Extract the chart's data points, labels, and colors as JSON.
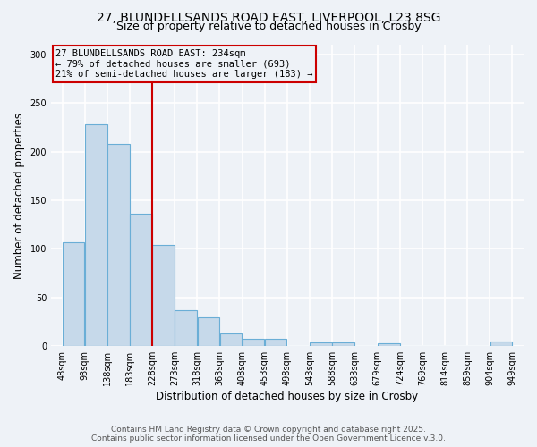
{
  "title1": "27, BLUNDELLSANDS ROAD EAST, LIVERPOOL, L23 8SG",
  "title2": "Size of property relative to detached houses in Crosby",
  "xlabel": "Distribution of detached houses by size in Crosby",
  "ylabel": "Number of detached properties",
  "bin_edges": [
    48,
    93,
    138,
    183,
    228,
    273,
    318,
    363,
    408,
    453,
    498,
    543,
    588,
    633,
    679,
    724,
    769,
    814,
    859,
    904,
    949
  ],
  "values": [
    107,
    228,
    208,
    136,
    104,
    37,
    30,
    13,
    8,
    8,
    0,
    4,
    4,
    0,
    3,
    0,
    0,
    0,
    0,
    5
  ],
  "bar_color": "#c6d9ea",
  "bar_edge_color": "#6aaed6",
  "vline_x": 228,
  "vline_color": "#cc0000",
  "annotation_line1": "27 BLUNDELLSANDS ROAD EAST: 234sqm",
  "annotation_line2": "← 79% of detached houses are smaller (693)",
  "annotation_line3": "21% of semi-detached houses are larger (183) →",
  "annotation_box_color": "#cc0000",
  "ylim": [
    0,
    310
  ],
  "yticks": [
    0,
    50,
    100,
    150,
    200,
    250,
    300
  ],
  "footer1": "Contains HM Land Registry data © Crown copyright and database right 2025.",
  "footer2": "Contains public sector information licensed under the Open Government Licence v.3.0.",
  "bg_color": "#eef2f7",
  "title_fontsize": 10,
  "subtitle_fontsize": 9,
  "axis_label_fontsize": 8.5,
  "tick_fontsize": 7,
  "annotation_fontsize": 7.5,
  "footer_fontsize": 6.5
}
